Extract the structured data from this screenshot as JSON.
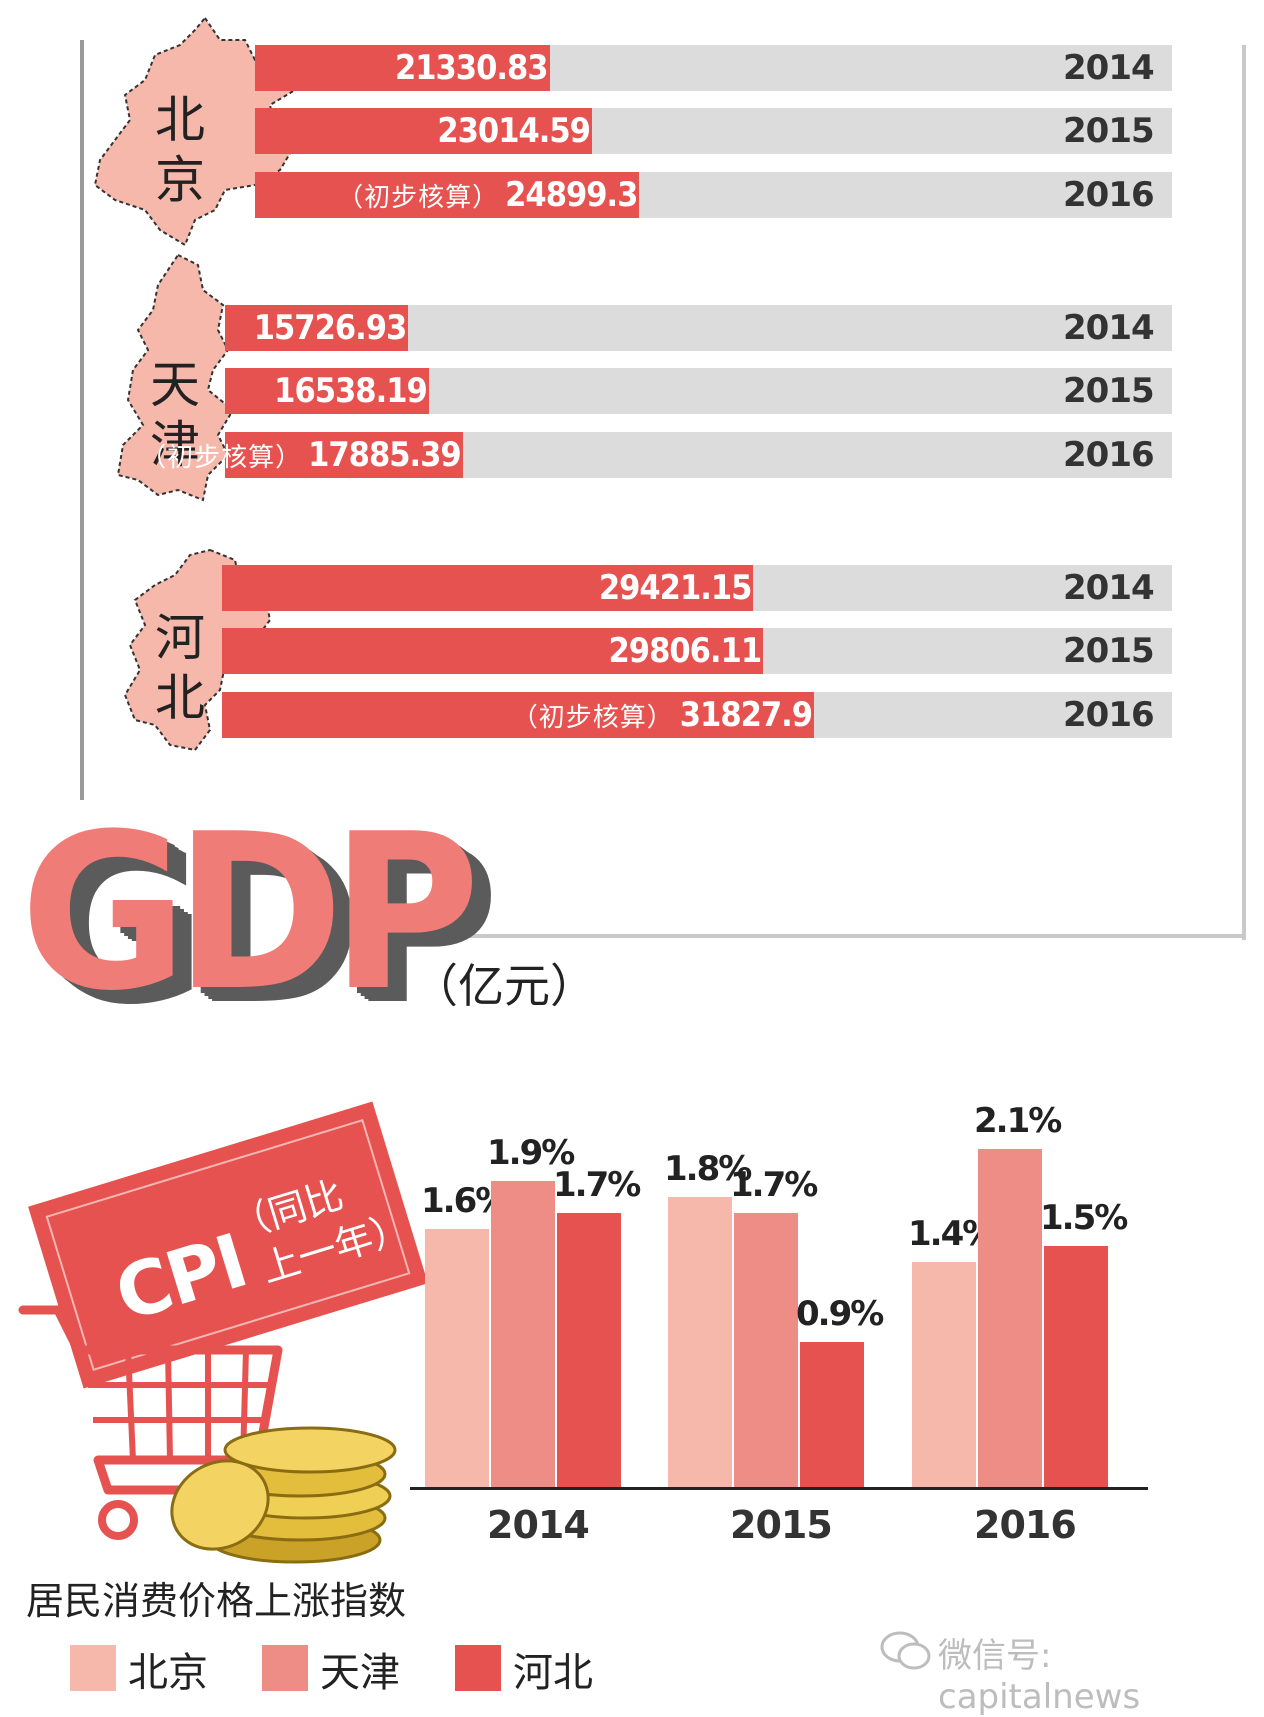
{
  "gdp": {
    "title": "GDP",
    "unit": "（亿元）",
    "note": "（初步核算）",
    "regions": [
      {
        "name_line1": "北",
        "name_line2": "京",
        "bars": [
          {
            "year": "2014",
            "value": 21330.83,
            "label": "21330.83",
            "note": ""
          },
          {
            "year": "2015",
            "value": 23014.59,
            "label": "23014.59",
            "note": ""
          },
          {
            "year": "2016",
            "value": 24899.3,
            "label": "24899.3",
            "note": "（初步核算）"
          }
        ]
      },
      {
        "name_line1": "天",
        "name_line2": "津",
        "bars": [
          {
            "year": "2014",
            "value": 15726.93,
            "label": "15726.93",
            "note": ""
          },
          {
            "year": "2015",
            "value": 16538.19,
            "label": "16538.19",
            "note": ""
          },
          {
            "year": "2016",
            "value": 17885.39,
            "label": "17885.39",
            "note": "（初步核算）"
          }
        ]
      },
      {
        "name_line1": "河",
        "name_line2": "北",
        "bars": [
          {
            "year": "2014",
            "value": 29421.15,
            "label": "29421.15",
            "note": ""
          },
          {
            "year": "2015",
            "value": 29806.11,
            "label": "29806.11",
            "note": ""
          },
          {
            "year": "2016",
            "value": 31827.9,
            "label": "31827.9",
            "note": "（初步核算）"
          }
        ]
      }
    ]
  },
  "cpi": {
    "tag_title": "CPI",
    "tag_sub1": "（同比",
    "tag_sub2": "上一年）",
    "caption": "居民消费价格上涨指数",
    "watermark": "微信号: capitalnews"
  },
  "chart_data": [
    {
      "type": "bar",
      "title": "GDP",
      "unit": "亿元",
      "categories": [
        "北京",
        "天津",
        "河北"
      ],
      "series": [
        {
          "name": "2014",
          "values": [
            21330.83,
            15726.93,
            29421.15
          ]
        },
        {
          "name": "2015",
          "values": [
            23014.59,
            16538.19,
            29806.11
          ]
        },
        {
          "name": "2016",
          "values": [
            24899.3,
            17885.39,
            31827.9
          ]
        }
      ],
      "orientation": "horizontal"
    },
    {
      "type": "bar",
      "title": "CPI",
      "categories": [
        "2014",
        "2015",
        "2016"
      ],
      "series": [
        {
          "name": "北京",
          "values": [
            1.6,
            1.8,
            1.4
          ],
          "labels": [
            "1.6%",
            "1.8%",
            "1.4%"
          ],
          "color": "#f5b8ab"
        },
        {
          "name": "天津",
          "values": [
            1.9,
            1.7,
            2.1
          ],
          "labels": [
            "1.9%",
            "1.7%",
            "2.1%"
          ],
          "color": "#ee8c86"
        },
        {
          "name": "河北",
          "values": [
            1.7,
            0.9,
            1.5
          ],
          "labels": [
            "1.7%",
            "0.9%",
            "1.5%"
          ],
          "color": "#e5524f"
        }
      ],
      "legend": "bottom"
    }
  ],
  "colors": {
    "accent": "#e5524f",
    "bar_bg": "#dcdcdc",
    "map": "#f5b8ab"
  }
}
